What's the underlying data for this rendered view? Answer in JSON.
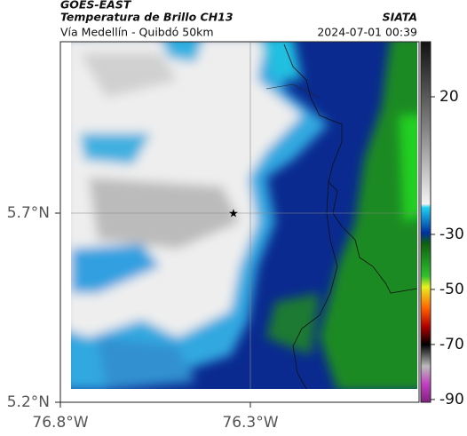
{
  "header": {
    "source": "GOES-EAST",
    "title": "Temperatura de Brillo CH13",
    "subtitle": "Vía Medellín - Quibdó 50km",
    "organization": "SIATA",
    "timestamp": "2024-07-01 00:39"
  },
  "map": {
    "xlim": [
      -76.8,
      -75.856
    ],
    "ylim": [
      5.2,
      6.153
    ],
    "xticks": [
      {
        "value": -76.8,
        "label": "76.8°W"
      },
      {
        "value": -76.3,
        "label": "76.3°W"
      }
    ],
    "yticks": [
      {
        "value": 5.7,
        "label": "5.7°N"
      },
      {
        "value": 5.2,
        "label": "5.2°N"
      }
    ]
  },
  "colorbar": {
    "lim": [
      -91,
      40
    ],
    "ticks": [
      20,
      -30,
      -50,
      -70,
      -90
    ]
  }
}
